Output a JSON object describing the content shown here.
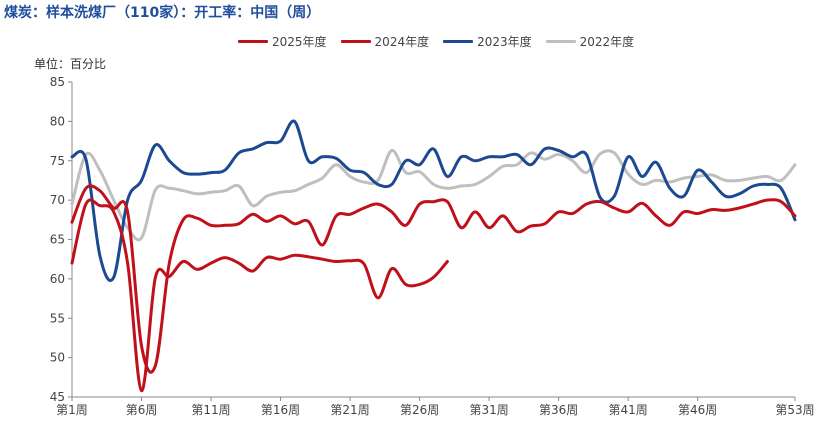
{
  "header": {
    "title": "煤炭：样本洗煤厂（110家）：开工率：中国（周）",
    "unit": "单位：百分比"
  },
  "colors": {
    "2025年度": "#c0111b",
    "2024年度": "#c0111b",
    "2023年度": "#1c4a91",
    "2022年度": "#bfbfbf"
  },
  "chart_data": {
    "type": "line",
    "title": "煤炭：样本洗煤厂（110家）：开工率：中国（周）",
    "ylabel": "单位：百分比",
    "ylim": [
      45,
      85
    ],
    "yticks": [
      45,
      50,
      55,
      60,
      65,
      70,
      75,
      80,
      85
    ],
    "xlim": [
      1,
      53
    ],
    "xticks": [
      1,
      6,
      11,
      16,
      21,
      26,
      31,
      36,
      41,
      46,
      53
    ],
    "xtick_labels": [
      "第1周",
      "第6周",
      "第11周",
      "第16周",
      "第21周",
      "第26周",
      "第31周",
      "第36周",
      "第41周",
      "第46周",
      "第53周"
    ],
    "grid": false,
    "legend_position": "top",
    "series": [
      {
        "name": "2025年度",
        "color": "#c0111b",
        "x": [
          1,
          2,
          3,
          4,
          5,
          6,
          7,
          8,
          9,
          10,
          11,
          12,
          13,
          14,
          15,
          16,
          17,
          18,
          19,
          20,
          21,
          22,
          23,
          24,
          25,
          26,
          27,
          28
        ],
        "y": [
          62.0,
          69.5,
          69.3,
          68.5,
          62.0,
          45.8,
          60.2,
          60.3,
          62.2,
          61.2,
          62.0,
          62.7,
          62.0,
          61.0,
          62.7,
          62.5,
          63.0,
          62.8,
          62.5,
          62.2,
          62.3,
          61.9,
          57.6,
          61.3,
          59.3,
          59.3,
          60.2,
          62.2
        ]
      },
      {
        "name": "2024年度",
        "color": "#c0111b",
        "x": [
          1,
          2,
          3,
          4,
          5,
          6,
          7,
          8,
          9,
          10,
          11,
          12,
          13,
          14,
          15,
          16,
          17,
          18,
          19,
          20,
          21,
          22,
          23,
          24,
          25,
          26,
          27,
          28,
          29,
          30,
          31,
          32,
          33,
          34,
          35,
          36,
          37,
          38,
          39,
          40,
          41,
          42,
          43,
          44,
          45,
          46,
          47,
          48,
          49,
          50,
          51,
          52,
          53
        ],
        "y": [
          67.2,
          71.5,
          71.2,
          69.0,
          68.5,
          51.5,
          49.0,
          62.0,
          67.5,
          67.7,
          66.8,
          66.8,
          67.0,
          68.2,
          67.3,
          68.0,
          67.0,
          67.3,
          64.3,
          68.0,
          68.2,
          69.0,
          69.5,
          68.5,
          66.8,
          69.5,
          69.8,
          69.8,
          66.5,
          68.5,
          66.5,
          68.0,
          66.0,
          66.7,
          67.0,
          68.5,
          68.3,
          69.5,
          69.8,
          69.0,
          68.5,
          69.6,
          68.0,
          66.8,
          68.5,
          68.3,
          68.8,
          68.7,
          69.0,
          69.5,
          70.0,
          69.8,
          68.0
        ]
      },
      {
        "name": "2023年度",
        "color": "#1c4a91",
        "x": [
          1,
          2,
          3,
          4,
          5,
          6,
          7,
          8,
          9,
          10,
          11,
          12,
          13,
          14,
          15,
          16,
          17,
          18,
          19,
          20,
          21,
          22,
          23,
          24,
          25,
          26,
          27,
          28,
          29,
          30,
          31,
          32,
          33,
          34,
          35,
          36,
          37,
          38,
          39,
          40,
          41,
          42,
          43,
          44,
          45,
          46,
          47,
          48,
          49,
          50,
          51,
          52,
          53
        ],
        "y": [
          75.5,
          75.2,
          63.0,
          60.2,
          70.0,
          72.5,
          77.0,
          75.0,
          73.5,
          73.3,
          73.5,
          73.8,
          76.0,
          76.5,
          77.3,
          77.5,
          80.0,
          75.0,
          75.5,
          75.3,
          73.8,
          73.5,
          72.0,
          72.0,
          75.0,
          74.5,
          76.5,
          73.0,
          75.5,
          75.0,
          75.5,
          75.5,
          75.8,
          74.5,
          76.5,
          76.3,
          75.5,
          75.8,
          70.3,
          70.5,
          75.5,
          73.0,
          74.8,
          71.5,
          70.5,
          73.8,
          72.3,
          70.5,
          70.8,
          71.8,
          72.0,
          71.5,
          67.5
        ]
      },
      {
        "name": "2022年度",
        "color": "#bfbfbf",
        "x": [
          1,
          2,
          3,
          4,
          5,
          6,
          7,
          8,
          9,
          10,
          11,
          12,
          13,
          14,
          15,
          16,
          17,
          18,
          19,
          20,
          21,
          22,
          23,
          24,
          25,
          26,
          27,
          28,
          29,
          30,
          31,
          32,
          33,
          34,
          35,
          36,
          37,
          38,
          39,
          40,
          41,
          42,
          43,
          44,
          45,
          46,
          47,
          48,
          49,
          50,
          51,
          52,
          53
        ],
        "y": [
          69.5,
          75.8,
          73.8,
          70.0,
          66.5,
          65.2,
          71.3,
          71.5,
          71.2,
          70.8,
          71.0,
          71.2,
          71.8,
          69.3,
          70.5,
          71.0,
          71.2,
          72.0,
          72.8,
          74.5,
          73.0,
          72.3,
          72.5,
          76.3,
          73.5,
          73.6,
          72.0,
          71.5,
          71.8,
          72.0,
          73.0,
          74.3,
          74.5,
          76.0,
          75.2,
          75.8,
          75.0,
          73.5,
          75.9,
          76.0,
          73.3,
          72.0,
          72.5,
          72.3,
          72.8,
          73.0,
          73.2,
          72.5,
          72.5,
          72.8,
          73.0,
          72.5,
          74.5
        ]
      }
    ]
  }
}
